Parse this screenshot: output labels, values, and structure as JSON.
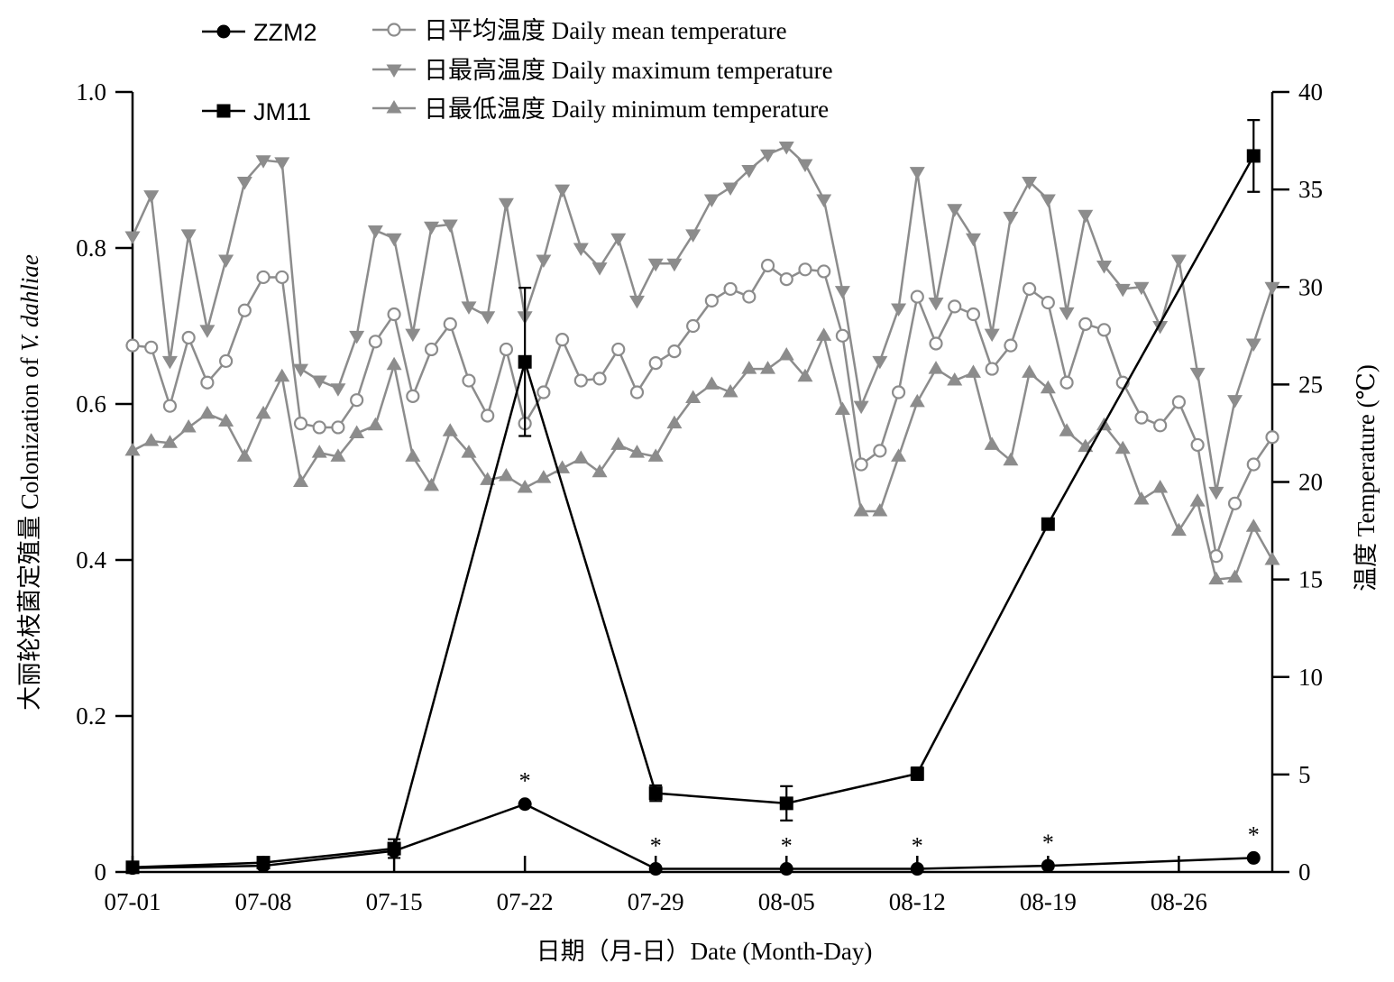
{
  "chart_data": {
    "type": "line",
    "xlabel": "日期（月-日）Date (Month-Day)",
    "ylabel_left": {
      "text": "大丽轮枝菌定殖量 Colonization of ",
      "italic": "V. dahliae"
    },
    "ylabel_right": "温度 Temperature (℃)",
    "xlim": [
      "07-01",
      "08-31"
    ],
    "ylim_left": [
      0,
      1.0
    ],
    "ylim_right": [
      0,
      40
    ],
    "x_ticks": [
      "07-01",
      "07-08",
      "07-15",
      "07-22",
      "07-29",
      "08-05",
      "08-12",
      "08-19",
      "08-26"
    ],
    "y_ticks_left": [
      "0",
      "0.2",
      "0.4",
      "0.6",
      "0.8",
      "1.0"
    ],
    "y_ticks_right": [
      "0",
      "5",
      "10",
      "15",
      "20",
      "25",
      "30",
      "35",
      "40"
    ],
    "grid": false,
    "legend_position": "top-left",
    "series": [
      {
        "name": "ZZM2",
        "axis": "left",
        "marker": "filled-circle",
        "color": "#000000",
        "x": [
          "07-01",
          "07-08",
          "07-15",
          "07-22",
          "07-29",
          "08-05",
          "08-12",
          "08-19",
          "08-30"
        ],
        "y": [
          0.005,
          0.008,
          0.027,
          0.087,
          0.004,
          0.004,
          0.004,
          0.008,
          0.018
        ]
      },
      {
        "name": "JM11",
        "axis": "left",
        "marker": "filled-square",
        "color": "#000000",
        "x": [
          "07-01",
          "07-08",
          "07-15",
          "07-22",
          "07-29",
          "08-05",
          "08-12",
          "08-19",
          "08-30"
        ],
        "y": [
          0.006,
          0.012,
          0.03,
          0.654,
          0.101,
          0.088,
          0.126,
          0.446,
          0.918
        ],
        "error": [
          0.004,
          0.004,
          0.012,
          0.095,
          0.01,
          0.022,
          0.008,
          0.005,
          0.046
        ]
      },
      {
        "name": "日平均温度 Daily mean temperature",
        "axis": "right",
        "marker": "open-circle",
        "color": "#8c8c8c",
        "x": [
          "07-01",
          "07-02",
          "07-03",
          "07-04",
          "07-05",
          "07-06",
          "07-07",
          "07-08",
          "07-09",
          "07-10",
          "07-11",
          "07-12",
          "07-13",
          "07-14",
          "07-15",
          "07-16",
          "07-17",
          "07-18",
          "07-19",
          "07-20",
          "07-21",
          "07-22",
          "07-23",
          "07-24",
          "07-25",
          "07-26",
          "07-27",
          "07-28",
          "07-29",
          "07-30",
          "07-31",
          "08-01",
          "08-02",
          "08-03",
          "08-04",
          "08-05",
          "08-06",
          "08-07",
          "08-08",
          "08-09",
          "08-10",
          "08-11",
          "08-12",
          "08-13",
          "08-14",
          "08-15",
          "08-16",
          "08-17",
          "08-18",
          "08-19",
          "08-20",
          "08-21",
          "08-22",
          "08-23",
          "08-24",
          "08-25",
          "08-26",
          "08-27",
          "08-28",
          "08-29",
          "08-30",
          "08-31"
        ],
        "y": [
          27.0,
          26.9,
          23.9,
          27.4,
          25.1,
          26.2,
          28.8,
          30.5,
          30.5,
          23.0,
          22.8,
          22.8,
          24.2,
          27.2,
          28.6,
          24.4,
          26.8,
          28.1,
          25.2,
          23.4,
          26.8,
          23.0,
          24.6,
          27.3,
          25.2,
          25.3,
          26.8,
          24.6,
          26.1,
          26.7,
          28.0,
          29.3,
          29.9,
          29.5,
          31.1,
          30.4,
          30.9,
          30.8,
          27.5,
          20.9,
          21.6,
          24.6,
          29.5,
          27.1,
          29.0,
          28.6,
          25.8,
          27.0,
          29.9,
          29.2,
          25.1,
          28.1,
          27.8,
          25.1,
          23.3,
          22.9,
          24.1,
          21.9,
          16.2,
          18.9,
          20.9,
          22.3
        ]
      },
      {
        "name": "日最高温度 Daily maximum temperature",
        "axis": "right",
        "marker": "filled-triangle-down",
        "color": "#8c8c8c",
        "x": [
          "07-01",
          "07-02",
          "07-03",
          "07-04",
          "07-05",
          "07-06",
          "07-07",
          "07-08",
          "07-09",
          "07-10",
          "07-11",
          "07-12",
          "07-13",
          "07-14",
          "07-15",
          "07-16",
          "07-17",
          "07-18",
          "07-19",
          "07-20",
          "07-21",
          "07-22",
          "07-23",
          "07-24",
          "07-25",
          "07-26",
          "07-27",
          "07-28",
          "07-29",
          "07-30",
          "07-31",
          "08-01",
          "08-02",
          "08-03",
          "08-04",
          "08-05",
          "08-06",
          "08-07",
          "08-08",
          "08-09",
          "08-10",
          "08-11",
          "08-12",
          "08-13",
          "08-14",
          "08-15",
          "08-16",
          "08-17",
          "08-18",
          "08-19",
          "08-20",
          "08-21",
          "08-22",
          "08-23",
          "08-24",
          "08-25",
          "08-26",
          "08-27",
          "08-28",
          "08-29",
          "08-30",
          "08-31"
        ],
        "y": [
          32.6,
          34.7,
          26.2,
          32.7,
          27.8,
          31.4,
          35.4,
          36.5,
          36.4,
          25.8,
          25.2,
          24.8,
          27.5,
          32.9,
          32.5,
          27.6,
          33.1,
          33.2,
          29.0,
          28.5,
          34.3,
          28.5,
          31.4,
          35.0,
          32.0,
          31.0,
          32.5,
          29.3,
          31.2,
          31.2,
          32.7,
          34.5,
          35.1,
          36.0,
          36.8,
          37.2,
          36.3,
          34.5,
          29.8,
          23.9,
          26.2,
          28.9,
          35.9,
          29.2,
          34.0,
          32.5,
          27.6,
          33.6,
          35.4,
          34.5,
          28.7,
          33.7,
          31.1,
          29.9,
          30.0,
          28.0,
          31.4,
          25.6,
          19.5,
          24.2,
          27.1,
          30.0
        ]
      },
      {
        "name": "日最低温度 Daily minimum temperature",
        "axis": "right",
        "marker": "filled-triangle-up",
        "color": "#8c8c8c",
        "x": [
          "07-01",
          "07-02",
          "07-03",
          "07-04",
          "07-05",
          "07-06",
          "07-07",
          "07-08",
          "07-09",
          "07-10",
          "07-11",
          "07-12",
          "07-13",
          "07-14",
          "07-15",
          "07-16",
          "07-17",
          "07-18",
          "07-19",
          "07-20",
          "07-21",
          "07-22",
          "07-23",
          "07-24",
          "07-25",
          "07-26",
          "07-27",
          "07-28",
          "07-29",
          "07-30",
          "07-31",
          "08-01",
          "08-02",
          "08-03",
          "08-04",
          "08-05",
          "08-06",
          "08-07",
          "08-08",
          "08-09",
          "08-10",
          "08-11",
          "08-12",
          "08-13",
          "08-14",
          "08-15",
          "08-16",
          "08-17",
          "08-18",
          "08-19",
          "08-20",
          "08-21",
          "08-22",
          "08-23",
          "08-24",
          "08-25",
          "08-26",
          "08-27",
          "08-28",
          "08-29",
          "08-30",
          "08-31"
        ],
        "y": [
          21.6,
          22.1,
          22.0,
          22.8,
          23.5,
          23.1,
          21.3,
          23.5,
          25.4,
          20.0,
          21.5,
          21.3,
          22.5,
          22.9,
          26.0,
          21.3,
          19.8,
          22.6,
          21.5,
          20.1,
          20.3,
          19.7,
          20.2,
          20.7,
          21.2,
          20.5,
          21.9,
          21.5,
          21.3,
          23.0,
          24.3,
          25.0,
          24.6,
          25.8,
          25.8,
          26.5,
          25.4,
          27.5,
          23.7,
          18.5,
          18.5,
          21.3,
          24.1,
          25.8,
          25.2,
          25.6,
          21.9,
          21.1,
          25.6,
          24.8,
          22.6,
          21.8,
          22.9,
          21.7,
          19.1,
          19.7,
          17.5,
          19.0,
          15.0,
          15.1,
          17.7,
          16.0
        ]
      }
    ],
    "annotations": [
      {
        "x": "07-22",
        "text": "*",
        "series": "ZZM2"
      },
      {
        "x": "07-29",
        "text": "*",
        "series": "ZZM2"
      },
      {
        "x": "08-05",
        "text": "*",
        "series": "ZZM2"
      },
      {
        "x": "08-12",
        "text": "*",
        "series": "ZZM2"
      },
      {
        "x": "08-19",
        "text": "*",
        "series": "ZZM2"
      },
      {
        "x": "08-30",
        "text": "*",
        "series": "ZZM2"
      }
    ]
  }
}
